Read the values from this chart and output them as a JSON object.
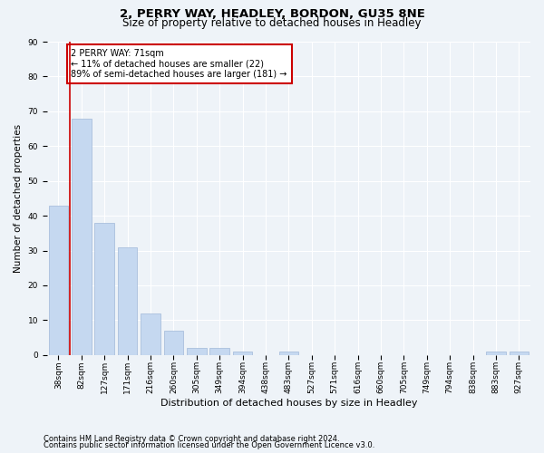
{
  "title1": "2, PERRY WAY, HEADLEY, BORDON, GU35 8NE",
  "title2": "Size of property relative to detached houses in Headley",
  "xlabel": "Distribution of detached houses by size in Headley",
  "ylabel": "Number of detached properties",
  "categories": [
    "38sqm",
    "82sqm",
    "127sqm",
    "171sqm",
    "216sqm",
    "260sqm",
    "305sqm",
    "349sqm",
    "394sqm",
    "438sqm",
    "483sqm",
    "527sqm",
    "571sqm",
    "616sqm",
    "660sqm",
    "705sqm",
    "749sqm",
    "794sqm",
    "838sqm",
    "883sqm",
    "927sqm"
  ],
  "values": [
    43,
    68,
    38,
    31,
    12,
    7,
    2,
    2,
    1,
    0,
    1,
    0,
    0,
    0,
    0,
    0,
    0,
    0,
    0,
    1,
    1
  ],
  "bar_color": "#c5d8f0",
  "bar_edge_color": "#a0b8d8",
  "vline_color": "#cc0000",
  "annotation_text": "2 PERRY WAY: 71sqm\n← 11% of detached houses are smaller (22)\n89% of semi-detached houses are larger (181) →",
  "annotation_box_color": "#ffffff",
  "annotation_box_edge": "#cc0000",
  "ylim": [
    0,
    90
  ],
  "yticks": [
    0,
    10,
    20,
    30,
    40,
    50,
    60,
    70,
    80,
    90
  ],
  "footer1": "Contains HM Land Registry data © Crown copyright and database right 2024.",
  "footer2": "Contains public sector information licensed under the Open Government Licence v3.0.",
  "bg_color": "#eef3f8",
  "plot_bg_color": "#eef3f8",
  "grid_color": "#ffffff",
  "title1_fontsize": 9.5,
  "title2_fontsize": 8.5,
  "xlabel_fontsize": 8,
  "ylabel_fontsize": 7.5,
  "tick_fontsize": 6.5,
  "annot_fontsize": 7,
  "footer_fontsize": 6
}
